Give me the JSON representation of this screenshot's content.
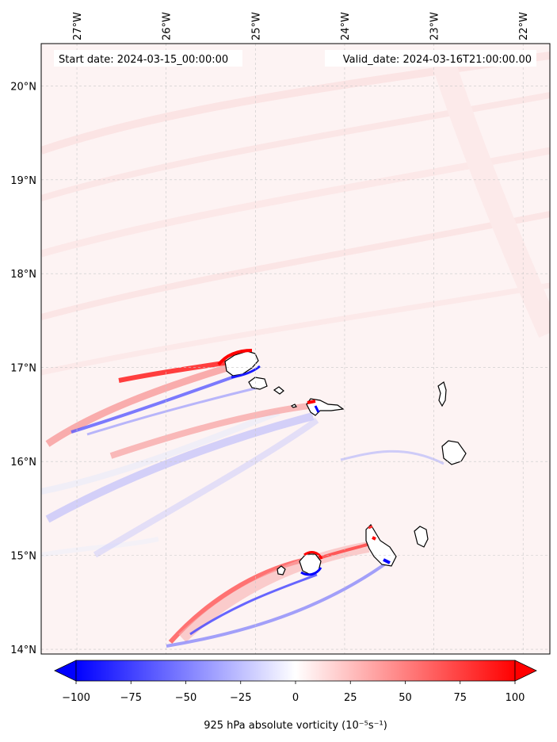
{
  "header": {
    "start_date": "Start date: 2024-03-15_00:00:00",
    "valid_date": "Valid_date: 2024-03-16T21:00:00.00"
  },
  "axes": {
    "lon_ticks": [
      "27°W",
      "26°W",
      "25°W",
      "24°W",
      "23°W",
      "22°W"
    ],
    "lat_ticks": [
      "20°N",
      "19°N",
      "18°N",
      "17°N",
      "16°N",
      "15°N",
      "14°N"
    ],
    "lon_values": [
      -27,
      -26,
      -25,
      -24,
      -23,
      -22
    ],
    "lat_values": [
      20,
      19,
      18,
      17,
      16,
      15,
      14
    ],
    "lon_range": [
      -27.4,
      -21.7
    ],
    "lat_range": [
      13.95,
      20.45
    ]
  },
  "colorbar": {
    "label": "925 hPa absolute vorticity (10⁻⁵s⁻¹)",
    "tick_labels": [
      "−100",
      "−75",
      "−50",
      "−25",
      "0",
      "25",
      "50",
      "75",
      "100"
    ],
    "tick_values": [
      -100,
      -75,
      -50,
      -25,
      0,
      25,
      50,
      75,
      100
    ],
    "range": [
      -100,
      100
    ],
    "colormap": "bwr",
    "extend": "both",
    "low_color": "#0000ff",
    "mid_color": "#ffffff",
    "high_color": "#ff0000"
  },
  "map": {
    "background_color": "#fdf3f3",
    "coastline_color": "#000000",
    "gridline_color": "#c8c8c8"
  }
}
